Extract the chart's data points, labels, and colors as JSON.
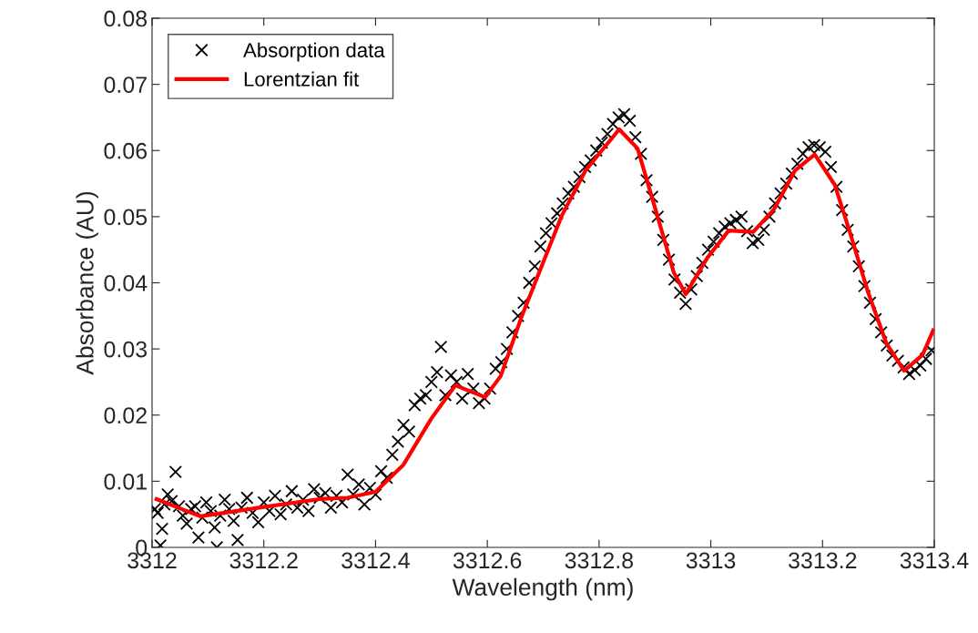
{
  "chart_data": {
    "type": "scatter",
    "xlabel": "Wavelength (nm)",
    "ylabel": "Absorbance (AU)",
    "xlim": [
      3312,
      3313.4
    ],
    "xticks": [
      3312,
      3312.2,
      3312.4,
      3312.6,
      3312.8,
      3313,
      3313.2,
      3313.4
    ],
    "ylim": [
      0,
      0.08
    ],
    "yticks": [
      0,
      0.01,
      0.02,
      0.03,
      0.04,
      0.05,
      0.06,
      0.07,
      0.08
    ],
    "grid": false,
    "legend": "top left",
    "series": [
      {
        "name": "Absorption data",
        "marker": "cross",
        "color": "#000000",
        "x": [
          3312.005,
          3312.01,
          3312.015,
          3312.018,
          3312.022,
          3312.028,
          3312.035,
          3312.042,
          3312.048,
          3312.055,
          3312.062,
          3312.07,
          3312.077,
          3312.083,
          3312.09,
          3312.097,
          3312.105,
          3312.112,
          3312.116,
          3312.122,
          3312.13,
          3312.138,
          3312.146,
          3312.153,
          3312.16,
          3312.17,
          3312.18,
          3312.19,
          3312.2,
          3312.21,
          3312.22,
          3312.23,
          3312.24,
          3312.25,
          3312.26,
          3312.27,
          3312.28,
          3312.29,
          3312.3,
          3312.31,
          3312.32,
          3312.33,
          3312.34,
          3312.35,
          3312.36,
          3312.37,
          3312.38,
          3312.39,
          3312.4,
          3312.41,
          3312.42,
          3312.43,
          3312.44,
          3312.45,
          3312.46,
          3312.47,
          3312.48,
          3312.49,
          3312.5,
          3312.51,
          3312.517,
          3312.525,
          3312.535,
          3312.545,
          3312.555,
          3312.565,
          3312.575,
          3312.585,
          3312.595,
          3312.605,
          3312.615,
          3312.625,
          3312.635,
          3312.645,
          3312.655,
          3312.665,
          3312.675,
          3312.685,
          3312.695,
          3312.705,
          3312.715,
          3312.725,
          3312.735,
          3312.745,
          3312.755,
          3312.765,
          3312.775,
          3312.785,
          3312.795,
          3312.805,
          3312.815,
          3312.825,
          3312.835,
          3312.845,
          3312.855,
          3312.865,
          3312.875,
          3312.885,
          3312.895,
          3312.905,
          3312.915,
          3312.925,
          3312.935,
          3312.945,
          3312.955,
          3312.965,
          3312.975,
          3312.985,
          3312.995,
          3313.005,
          3313.015,
          3313.025,
          3313.035,
          3313.045,
          3313.055,
          3313.065,
          3313.075,
          3313.085,
          3313.095,
          3313.105,
          3313.115,
          3313.125,
          3313.135,
          3313.145,
          3313.155,
          3313.165,
          3313.175,
          3313.185,
          3313.195,
          3313.205,
          3313.215,
          3313.225,
          3313.235,
          3313.245,
          3313.255,
          3313.265,
          3313.275,
          3313.285,
          3313.295,
          3313.305,
          3313.315,
          3313.325,
          3313.335,
          3313.345,
          3313.355,
          3313.365,
          3313.375,
          3313.385,
          3313.395
        ],
        "values": [
          0.0058,
          0.0052,
          0.0003,
          0.0028,
          0.0065,
          0.008,
          0.007,
          0.0114,
          0.0062,
          0.0048,
          0.0036,
          0.0058,
          0.0062,
          0.0015,
          0.0045,
          0.0068,
          0.0055,
          0.003,
          0.0,
          0.0048,
          0.0072,
          0.0058,
          0.004,
          0.0011,
          0.006,
          0.0075,
          0.0052,
          0.0038,
          0.0068,
          0.0055,
          0.0078,
          0.005,
          0.0065,
          0.0085,
          0.006,
          0.0072,
          0.0055,
          0.0088,
          0.0075,
          0.0082,
          0.006,
          0.0078,
          0.0068,
          0.011,
          0.008,
          0.0095,
          0.0065,
          0.009,
          0.008,
          0.0115,
          0.0105,
          0.014,
          0.016,
          0.0185,
          0.0175,
          0.0215,
          0.0225,
          0.023,
          0.025,
          0.0265,
          0.0303,
          0.023,
          0.026,
          0.025,
          0.0225,
          0.0262,
          0.024,
          0.0218,
          0.0225,
          0.024,
          0.027,
          0.028,
          0.03,
          0.0325,
          0.035,
          0.037,
          0.04,
          0.0425,
          0.0455,
          0.0475,
          0.049,
          0.0505,
          0.052,
          0.0535,
          0.0545,
          0.056,
          0.0575,
          0.0585,
          0.06,
          0.0612,
          0.0625,
          0.064,
          0.065,
          0.0655,
          0.0645,
          0.062,
          0.0595,
          0.0555,
          0.053,
          0.05,
          0.0465,
          0.0435,
          0.0405,
          0.0385,
          0.0368,
          0.039,
          0.041,
          0.043,
          0.045,
          0.0462,
          0.0475,
          0.0485,
          0.049,
          0.0495,
          0.05,
          0.0478,
          0.046,
          0.0465,
          0.048,
          0.05,
          0.052,
          0.0535,
          0.055,
          0.0565,
          0.058,
          0.0595,
          0.0605,
          0.0608,
          0.0605,
          0.0598,
          0.0575,
          0.0545,
          0.051,
          0.048,
          0.0455,
          0.0425,
          0.0395,
          0.037,
          0.0345,
          0.0325,
          0.0305,
          0.029,
          0.0282,
          0.0272,
          0.0262,
          0.0268,
          0.0275,
          0.0285,
          0.0298
        ]
      },
      {
        "name": "Lorentzian fit",
        "type": "line",
        "marker": "none",
        "line_style": "solid",
        "color": "#ff0000",
        "x": [
          3312.008,
          3312.086,
          3312.2,
          3312.3,
          3312.35,
          3312.4,
          3312.45,
          3312.5,
          3312.543,
          3312.596,
          3312.624,
          3312.662,
          3312.701,
          3312.733,
          3312.776,
          3312.836,
          3312.869,
          3312.901,
          3312.934,
          3312.955,
          3312.994,
          3313.032,
          3313.076,
          3313.113,
          3313.151,
          3313.186,
          3313.222,
          3313.248,
          3313.281,
          3313.314,
          3313.346,
          3313.379,
          3313.398
        ],
        "values": [
          0.0073,
          0.0047,
          0.0061,
          0.0073,
          0.0075,
          0.0084,
          0.0125,
          0.0195,
          0.0245,
          0.0227,
          0.0259,
          0.035,
          0.0433,
          0.0501,
          0.057,
          0.0632,
          0.0603,
          0.0511,
          0.0415,
          0.0383,
          0.0438,
          0.0479,
          0.0477,
          0.0511,
          0.057,
          0.0594,
          0.0548,
          0.0479,
          0.0387,
          0.0309,
          0.0267,
          0.0291,
          0.0328
        ]
      }
    ]
  }
}
